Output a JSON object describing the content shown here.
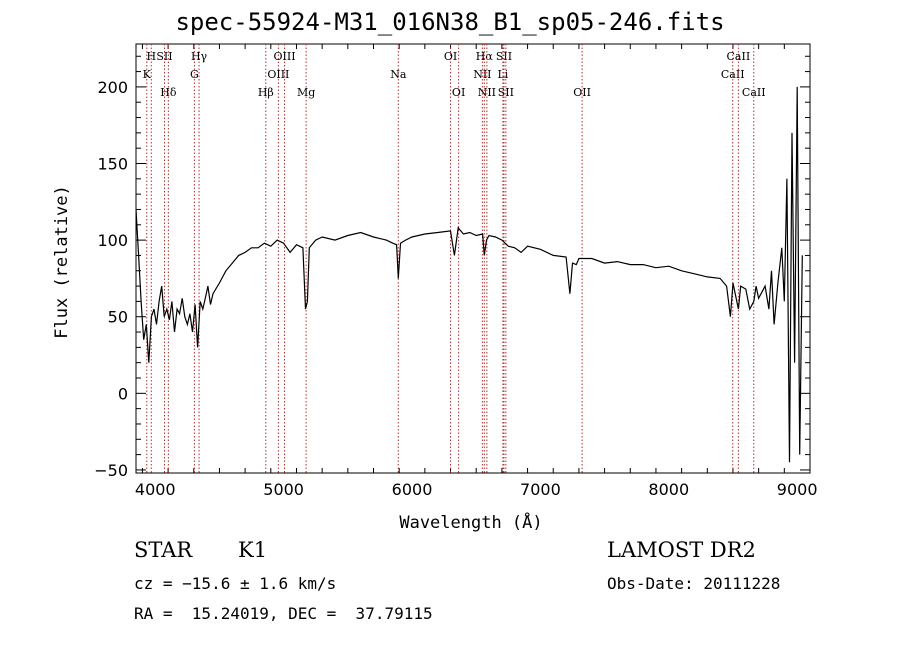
{
  "title": "spec-55924-M31_016N38_B1_sp05-246.fits",
  "info": {
    "class": "STAR",
    "subclass": "K1",
    "survey": "LAMOST DR2",
    "cz": "cz = −15.6 ± 1.6 km/s",
    "obs_date": "Obs-Date: 20111228",
    "radec": "RA =  15.24019, DEC =  37.79115"
  },
  "chart_data": {
    "type": "line",
    "title": "spec-55924-M31_016N38_B1_sp05-246.fits",
    "xlabel": "Wavelength (Å)",
    "ylabel": "Flux (relative)",
    "xlim": [
      3850,
      9100
    ],
    "ylim": [
      -52,
      228
    ],
    "xticks": [
      4000,
      5000,
      6000,
      7000,
      8000,
      9000
    ],
    "yticks": [
      -50,
      0,
      50,
      100,
      150,
      200
    ],
    "xticklabels": [
      "4000",
      "5000",
      "6000",
      "7000",
      "8000",
      "9000"
    ],
    "yticklabels": [
      "−50",
      "0",
      "50",
      "100",
      "150",
      "200"
    ],
    "line_color": "#000000",
    "marker_color": "#b03030",
    "series": [
      {
        "x": [
          3850,
          3870,
          3890,
          3910,
          3930,
          3950,
          3970,
          3990,
          4010,
          4030,
          4050,
          4070,
          4090,
          4110,
          4130,
          4150,
          4170,
          4190,
          4210,
          4230,
          4250,
          4270,
          4290,
          4310,
          4330,
          4350,
          4370,
          4390,
          4410,
          4430,
          4450,
          4500,
          4550,
          4600,
          4650,
          4700,
          4750,
          4800,
          4850,
          4900,
          4950,
          5000,
          5050,
          5100,
          5150,
          5170,
          5185,
          5200,
          5250,
          5300,
          5400,
          5500,
          5600,
          5700,
          5800,
          5850,
          5880,
          5893,
          5910,
          5950,
          6000,
          6100,
          6200,
          6300,
          6330,
          6360,
          6400,
          6450,
          6500,
          6550,
          6563,
          6580,
          6600,
          6650,
          6700,
          6750,
          6800,
          6850,
          6900,
          7000,
          7100,
          7200,
          7230,
          7250,
          7280,
          7300,
          7400,
          7500,
          7600,
          7700,
          7800,
          7900,
          8000,
          8100,
          8200,
          8300,
          8400,
          8450,
          8480,
          8500,
          8542,
          8560,
          8600,
          8630,
          8662,
          8680,
          8700,
          8750,
          8780,
          8800,
          8820,
          8850,
          8880,
          8900,
          8920,
          8940,
          8960,
          8980,
          9000,
          9020,
          9040
        ],
        "y": [
          120,
          90,
          60,
          35,
          45,
          20,
          50,
          55,
          45,
          60,
          70,
          50,
          55,
          48,
          60,
          40,
          55,
          52,
          62,
          50,
          45,
          52,
          40,
          58,
          30,
          60,
          55,
          62,
          70,
          58,
          65,
          72,
          80,
          85,
          90,
          92,
          95,
          95,
          98,
          96,
          100,
          98,
          92,
          97,
          95,
          55,
          60,
          95,
          100,
          102,
          100,
          103,
          105,
          102,
          100,
          98,
          97,
          75,
          98,
          100,
          102,
          104,
          105,
          106,
          90,
          108,
          104,
          105,
          103,
          104,
          90,
          100,
          103,
          102,
          100,
          96,
          95,
          92,
          96,
          94,
          90,
          89,
          65,
          85,
          84,
          88,
          88,
          85,
          86,
          84,
          84,
          82,
          83,
          80,
          78,
          76,
          75,
          70,
          50,
          72,
          55,
          70,
          68,
          55,
          60,
          70,
          62,
          70,
          55,
          80,
          45,
          72,
          95,
          60,
          140,
          -45,
          170,
          20,
          200,
          -40,
          90
        ]
      }
    ],
    "lines": [
      {
        "name": "K",
        "x": 3934,
        "row": 2
      },
      {
        "name": "H",
        "x": 3969,
        "row": 1
      },
      {
        "name": "SII",
        "x": 4072,
        "row": 1
      },
      {
        "name": "Hδ",
        "x": 4102,
        "row": 3
      },
      {
        "name": "Hγ",
        "x": 4341,
        "row": 1
      },
      {
        "name": "G",
        "x": 4305,
        "row": 2
      },
      {
        "name": "Hβ",
        "x": 4861,
        "row": 3
      },
      {
        "name": "OIII",
        "x": 4959,
        "row": 2
      },
      {
        "name": "OIII",
        "x": 5007,
        "row": 1
      },
      {
        "name": "Mg",
        "x": 5175,
        "row": 3
      },
      {
        "name": "Na",
        "x": 5893,
        "row": 2
      },
      {
        "name": "OI",
        "x": 6300,
        "row": 1
      },
      {
        "name": "OI",
        "x": 6363,
        "row": 3
      },
      {
        "name": "NII",
        "x": 6548,
        "row": 2
      },
      {
        "name": "Hα",
        "x": 6563,
        "row": 1
      },
      {
        "name": "NII",
        "x": 6583,
        "row": 3
      },
      {
        "name": "Li",
        "x": 6708,
        "row": 2
      },
      {
        "name": "SII",
        "x": 6716,
        "row": 1
      },
      {
        "name": "SII",
        "x": 6731,
        "row": 3
      },
      {
        "name": "OII",
        "x": 7325,
        "row": 3
      },
      {
        "name": "CaII",
        "x": 8498,
        "row": 2
      },
      {
        "name": "CaII",
        "x": 8542,
        "row": 1
      },
      {
        "name": "CaII",
        "x": 8662,
        "row": 3
      }
    ],
    "grid": false
  }
}
